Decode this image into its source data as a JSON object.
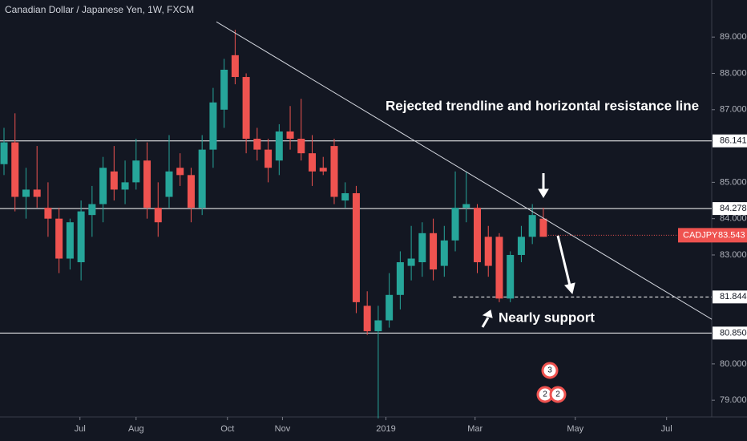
{
  "chart_data": {
    "type": "candlestick",
    "title": "Canadian Dollar / Japanese Yen, 1W, FXCM",
    "x": [
      0,
      1,
      2,
      3,
      4,
      5,
      6,
      7,
      8,
      9,
      10,
      11,
      12,
      13,
      14,
      15,
      16,
      17,
      18,
      19,
      20,
      21,
      22,
      23,
      24,
      25,
      26,
      27,
      28,
      29,
      30,
      31,
      32,
      33,
      34,
      35,
      36,
      37,
      38,
      39,
      40,
      41,
      42,
      43,
      44,
      45,
      46,
      47,
      48,
      49
    ],
    "open": [
      85.5,
      86.1,
      84.6,
      84.8,
      84.3,
      84.0,
      82.9,
      82.8,
      84.1,
      84.4,
      85.3,
      84.8,
      85.0,
      85.6,
      84.3,
      84.6,
      85.4,
      85.2,
      84.3,
      85.9,
      87.0,
      88.5,
      87.9,
      86.2,
      85.9,
      85.6,
      86.4,
      86.2,
      85.8,
      85.4,
      86.0,
      84.5,
      84.7,
      81.6,
      80.9,
      81.2,
      81.9,
      82.7,
      82.8,
      83.6,
      82.7,
      83.4,
      84.3,
      84.3,
      83.5,
      83.5,
      81.8,
      83.0,
      83.5,
      84.0
    ],
    "high": [
      86.5,
      86.9,
      85.4,
      86.0,
      85.0,
      84.3,
      84.0,
      84.5,
      84.9,
      85.7,
      86.0,
      85.6,
      86.2,
      86.1,
      85.0,
      86.3,
      85.8,
      85.4,
      86.3,
      87.6,
      88.4,
      89.2,
      88.0,
      86.5,
      86.2,
      86.6,
      87.1,
      87.3,
      86.3,
      85.7,
      86.2,
      85.0,
      84.9,
      82.0,
      81.6,
      82.5,
      83.1,
      83.8,
      83.9,
      84.0,
      83.8,
      85.3,
      85.3,
      84.4,
      83.8,
      83.6,
      83.1,
      83.8,
      84.4,
      84.3
    ],
    "low": [
      85.2,
      84.2,
      84.0,
      84.3,
      83.5,
      82.5,
      82.6,
      82.3,
      83.5,
      83.9,
      84.5,
      84.4,
      84.8,
      84.0,
      83.5,
      84.3,
      84.9,
      83.9,
      84.1,
      85.4,
      86.5,
      87.7,
      85.8,
      85.6,
      85.0,
      85.2,
      85.9,
      85.6,
      84.9,
      85.2,
      84.4,
      84.3,
      81.4,
      80.8,
      78.5,
      81.0,
      81.5,
      82.3,
      82.4,
      82.3,
      82.4,
      83.1,
      83.9,
      82.5,
      82.4,
      81.7,
      81.7,
      82.8,
      83.3,
      83.5
    ],
    "close": [
      86.1,
      84.6,
      84.8,
      84.6,
      84.0,
      82.9,
      83.9,
      84.2,
      84.4,
      85.4,
      84.8,
      85.0,
      85.6,
      84.3,
      83.9,
      85.3,
      85.2,
      84.3,
      85.9,
      87.2,
      88.1,
      87.9,
      86.2,
      85.9,
      85.4,
      86.4,
      86.2,
      85.8,
      85.3,
      85.3,
      84.6,
      84.7,
      81.7,
      80.9,
      81.2,
      81.9,
      82.8,
      82.9,
      83.6,
      82.6,
      83.4,
      84.3,
      84.4,
      82.8,
      82.7,
      81.8,
      83.0,
      83.5,
      84.1,
      83.5
    ],
    "up_color": "#26a69a",
    "down_color": "#ef5350",
    "xlim": [
      -0.364,
      64.3
    ],
    "xticks": [
      {
        "value": 6.9,
        "label": "Jul"
      },
      {
        "value": 12.0,
        "label": "Aug"
      },
      {
        "value": 20.3,
        "label": "Oct"
      },
      {
        "value": 25.3,
        "label": "Nov"
      },
      {
        "value": 34.7,
        "label": "2019"
      },
      {
        "value": 42.8,
        "label": "Mar"
      },
      {
        "value": 51.9,
        "label": "May"
      },
      {
        "value": 60.2,
        "label": "Jul"
      }
    ],
    "ylim": [
      78.54,
      90.02
    ],
    "yticks": [
      {
        "value": 79,
        "label": "79.000"
      },
      {
        "value": 80,
        "label": "80.000"
      },
      {
        "value": 83,
        "label": "83.000"
      },
      {
        "value": 84,
        "label": "84.000"
      },
      {
        "value": 85,
        "label": "85.000"
      },
      {
        "value": 87,
        "label": "87.000"
      },
      {
        "value": 88,
        "label": "88.000"
      },
      {
        "value": 89,
        "label": "89.000"
      }
    ],
    "levels": [
      {
        "value": 86.141,
        "label": "86.141"
      },
      {
        "value": 84.278,
        "label": "84.278"
      },
      {
        "value": 81.844,
        "label": "81.844",
        "dashed": true,
        "from": 40.8
      },
      {
        "value": 80.85,
        "label": "80.850"
      }
    ],
    "last_price": {
      "name": "CADJPY",
      "value": 83.543,
      "label": "83.543"
    },
    "trendline": {
      "x": [
        19.3,
        64.3
      ],
      "y": [
        89.42,
        81.23
      ]
    },
    "annotations": [
      "Rejected trendline and horizontal resistance line",
      "Nearly support"
    ],
    "events": [
      "3",
      "2",
      "2"
    ]
  }
}
